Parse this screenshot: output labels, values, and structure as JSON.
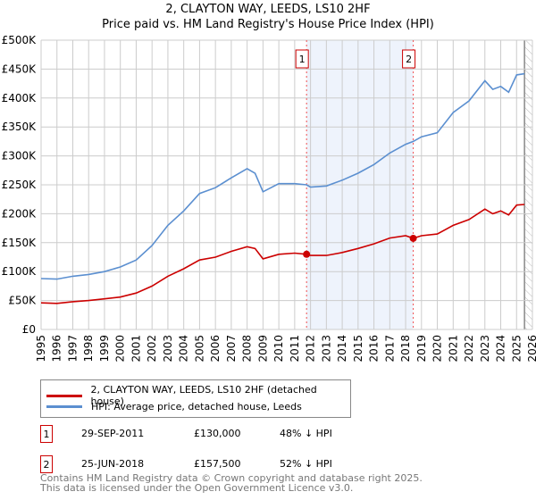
{
  "title": "2, CLAYTON WAY, LEEDS, LS10 2HF",
  "subtitle": "Price paid vs. HM Land Registry's House Price Index (HPI)",
  "chart_data": {
    "type": "line",
    "title": "2, CLAYTON WAY, LEEDS, LS10 2HF",
    "subtitle": "Price paid vs. HM Land Registry's House Price Index (HPI)",
    "xlim": [
      1995,
      2026
    ],
    "ylim": [
      0,
      500000
    ],
    "yticks": [
      0,
      50000,
      100000,
      150000,
      200000,
      250000,
      300000,
      350000,
      400000,
      450000,
      500000
    ],
    "ytick_labels": [
      "£0",
      "£50K",
      "£100K",
      "£150K",
      "£200K",
      "£250K",
      "£300K",
      "£350K",
      "£400K",
      "£450K",
      "£500K"
    ],
    "xticks": [
      1995,
      1996,
      1997,
      1998,
      1999,
      2000,
      2001,
      2002,
      2003,
      2004,
      2005,
      2006,
      2007,
      2008,
      2009,
      2010,
      2011,
      2012,
      2013,
      2014,
      2015,
      2016,
      2017,
      2018,
      2019,
      2020,
      2021,
      2022,
      2023,
      2024,
      2025,
      2026
    ],
    "grid": true,
    "shaded_region": [
      2011.75,
      2018.48
    ],
    "series": [
      {
        "name": "2, CLAYTON WAY, LEEDS, LS10 2HF (detached house)",
        "color": "#cc0000",
        "x": [
          1995,
          1996,
          1997,
          1998,
          1999,
          2000,
          2001,
          2002,
          2003,
          2004,
          2005,
          2006,
          2007,
          2008,
          2008.5,
          2009,
          2010,
          2011,
          2011.75,
          2012,
          2013,
          2014,
          2015,
          2016,
          2017,
          2018,
          2018.48,
          2019,
          2020,
          2021,
          2022,
          2023,
          2023.5,
          2024,
          2024.5,
          2025,
          2025.5
        ],
        "y": [
          46000,
          45000,
          48000,
          50000,
          53000,
          56000,
          63000,
          75000,
          92000,
          105000,
          120000,
          125000,
          135000,
          143000,
          140000,
          122000,
          130000,
          132000,
          130000,
          128000,
          128000,
          133000,
          140000,
          148000,
          158000,
          162000,
          157500,
          162000,
          165000,
          180000,
          190000,
          208000,
          200000,
          205000,
          198000,
          215000,
          216000
        ]
      },
      {
        "name": "HPI: Average price, detached house, Leeds",
        "color": "#5b8fd0",
        "x": [
          1995,
          1996,
          1997,
          1998,
          1999,
          2000,
          2001,
          2002,
          2003,
          2004,
          2005,
          2006,
          2007,
          2008,
          2008.5,
          2009,
          2010,
          2011,
          2011.75,
          2012,
          2013,
          2014,
          2015,
          2016,
          2017,
          2018,
          2018.48,
          2019,
          2020,
          2021,
          2022,
          2023,
          2023.5,
          2024,
          2024.5,
          2025,
          2025.5
        ],
        "y": [
          88000,
          87000,
          92000,
          95000,
          100000,
          108000,
          120000,
          145000,
          180000,
          205000,
          235000,
          245000,
          262000,
          278000,
          270000,
          238000,
          252000,
          252000,
          250000,
          246000,
          248000,
          258000,
          270000,
          285000,
          305000,
          320000,
          325000,
          333000,
          340000,
          375000,
          395000,
          430000,
          415000,
          420000,
          410000,
          440000,
          442000
        ]
      }
    ],
    "sales": [
      {
        "label": "1",
        "x": 2011.75,
        "y": 130000
      },
      {
        "label": "2",
        "x": 2018.48,
        "y": 157500
      }
    ]
  },
  "legend": {
    "red_label": "2, CLAYTON WAY, LEEDS, LS10 2HF (detached house)",
    "blue_label": "HPI: Average price, detached house, Leeds"
  },
  "transactions": [
    {
      "num": "1",
      "date": "29-SEP-2011",
      "price": "£130,000",
      "hpi": "48% ↓ HPI"
    },
    {
      "num": "2",
      "date": "25-JUN-2018",
      "price": "£157,500",
      "hpi": "52% ↓ HPI"
    }
  ],
  "footer": {
    "line1": "Contains HM Land Registry data © Crown copyright and database right 2025.",
    "line2": "This data is licensed under the Open Government Licence v3.0."
  }
}
